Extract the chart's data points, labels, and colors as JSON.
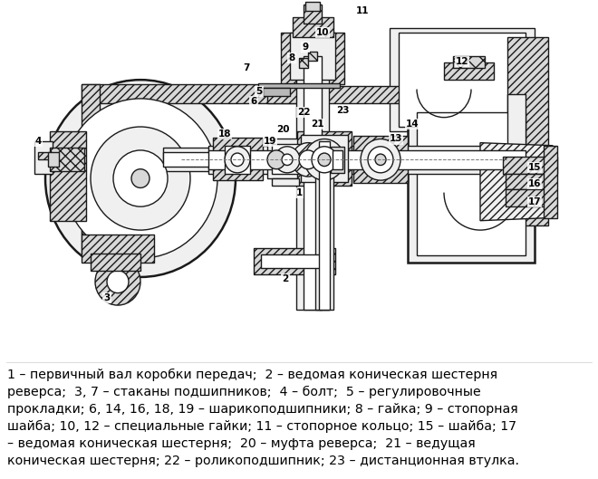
{
  "caption_lines": [
    "1 – первичный вал коробки передач;  2 – ведомая коническая шестерня",
    "реверса;  3, 7 – стаканы подшипников;  4 – болт;  5 – регулировочные",
    "прокладки; 6, 14, 16, 18, 19 – шарикоподшипники; 8 – гайка; 9 – стопорная",
    "шайба; 10, 12 – специальные гайки; 11 – стопорное кольцо; 15 – шайба; 17",
    "– ведомая коническая шестерня;  20 – муфта реверса;  21 – ведущая",
    "коническая шестерня; 22 – роликоподшипник; 23 – дистанционная втулка."
  ],
  "bg_color": "#ffffff",
  "text_color": "#000000",
  "font_size": 10.2,
  "figsize": [
    6.6,
    5.29
  ],
  "dpi": 100,
  "hatch_color": "#555555",
  "lc": "#1a1a1a",
  "lw_main": 1.0,
  "lw_thick": 1.8
}
